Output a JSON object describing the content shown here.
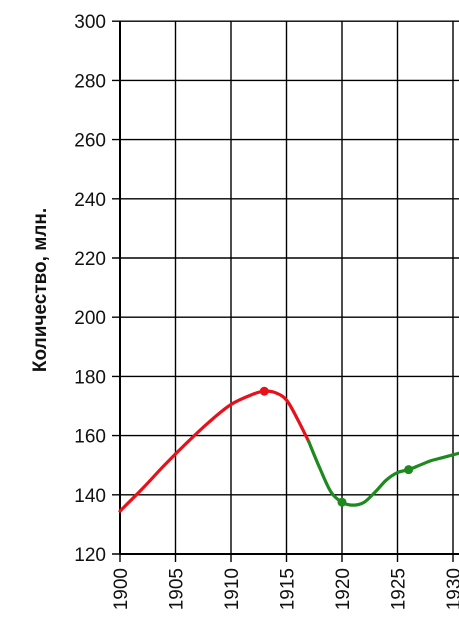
{
  "chart_data": {
    "type": "line",
    "title": "",
    "xlabel": "",
    "ylabel": "Количество, млн.",
    "xlim": [
      1900,
      1931
    ],
    "ylim": [
      120,
      300
    ],
    "x_ticks": [
      1900,
      1905,
      1910,
      1915,
      1920,
      1925,
      1930
    ],
    "x_tick_labels": [
      "1900",
      "1905",
      "1910",
      "1915",
      "1920",
      "1925",
      "1930"
    ],
    "y_ticks": [
      120,
      140,
      160,
      180,
      200,
      220,
      240,
      260,
      280,
      300
    ],
    "y_tick_labels": [
      "120",
      "140",
      "160",
      "180",
      "200",
      "220",
      "240",
      "260",
      "280",
      "300"
    ],
    "grid": true,
    "series": [
      {
        "color": "#e8101a",
        "x": [
          1900,
          1902,
          1904,
          1906,
          1908,
          1910,
          1912,
          1913,
          1914,
          1915,
          1916,
          1917
        ],
        "y": [
          134.5,
          142,
          150,
          157.5,
          164.5,
          170.5,
          174,
          175,
          174.5,
          172,
          165.5,
          158
        ]
      },
      {
        "color": "#1e8a1e",
        "x": [
          1917,
          1918,
          1919,
          1920,
          1921,
          1922,
          1923,
          1924,
          1925,
          1926,
          1927,
          1928,
          1929,
          1930,
          1931
        ],
        "y": [
          158,
          149,
          141,
          137.5,
          136.5,
          137.5,
          141,
          145,
          147.5,
          148.5,
          150,
          151.5,
          152.5,
          153.5,
          154.5
        ]
      }
    ],
    "markers": [
      {
        "x": 1913,
        "y": 175,
        "color": "#e8101a"
      },
      {
        "x": 1920,
        "y": 137.5,
        "color": "#1e8a1e"
      },
      {
        "x": 1926,
        "y": 148.5,
        "color": "#1e8a1e"
      }
    ]
  }
}
